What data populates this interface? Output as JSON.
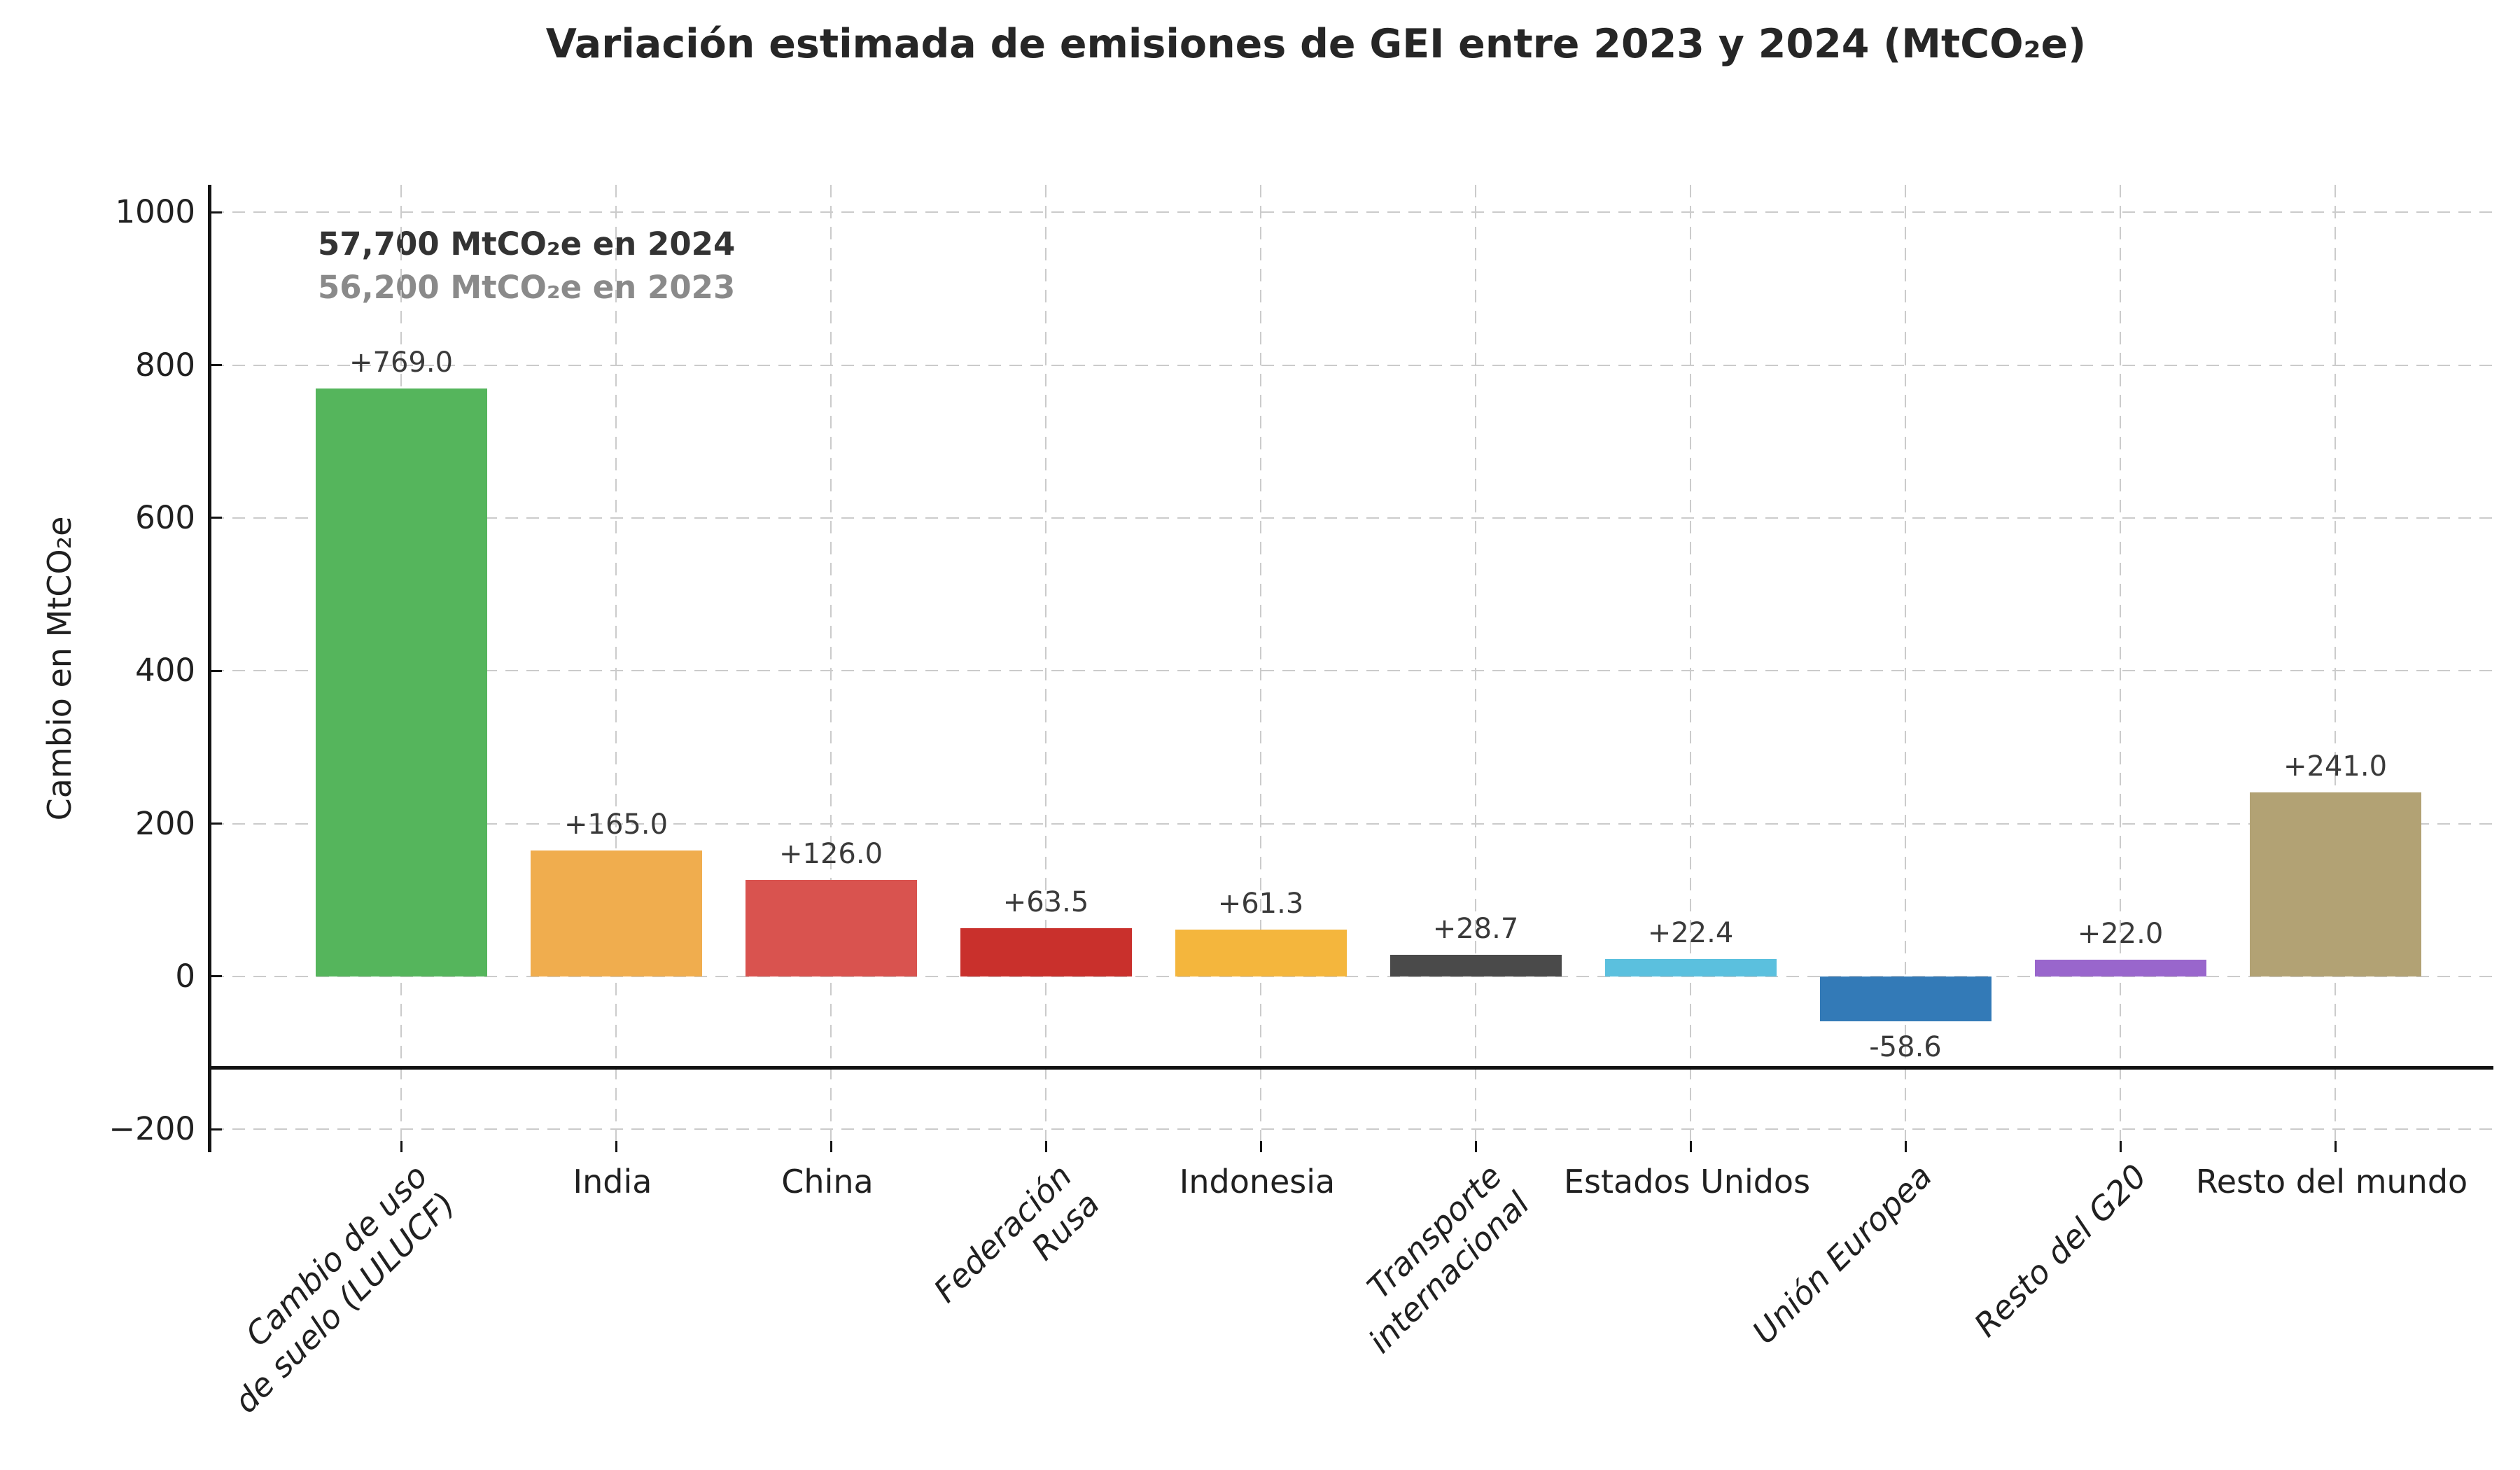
{
  "title": "Variación estimada de emisiones de GEI entre 2023 y 2024 (MtCO₂e)",
  "annotation": {
    "line1": "57,700 MtCO₂e en 2024",
    "line2": "56,200 MtCO₂e en 2023",
    "line1_color": "#333333",
    "line2_color": "#8a8a8a"
  },
  "chart_data": {
    "type": "bar",
    "title": "Variación estimada de emisiones de GEI entre 2023 y 2024 (MtCO₂e)",
    "xlabel": "",
    "ylabel": "Cambio en MtCO₂e",
    "categories": [
      "Cambio de uso de suelo (LULUCF)",
      "India",
      "China",
      "Federación Rusa",
      "Indonesia",
      "Transporte internacional",
      "Estados Unidos",
      "Unión Europea",
      "Resto del G20",
      "Resto del mundo"
    ],
    "category_display_lines": [
      [
        "Cambio de uso",
        "de suelo (LULUCF)"
      ],
      [
        "India"
      ],
      [
        "China"
      ],
      [
        "Federación",
        "Rusa"
      ],
      [
        "Indonesia"
      ],
      [
        "Transporte",
        "internacional"
      ],
      [
        "Estados Unidos"
      ],
      [
        "Unión Europea"
      ],
      [
        "Resto del G20"
      ],
      [
        "Resto del mundo"
      ]
    ],
    "category_rotated": [
      true,
      false,
      false,
      true,
      false,
      true,
      false,
      true,
      true,
      false
    ],
    "values": [
      769.0,
      165.0,
      126.0,
      63.5,
      61.3,
      28.7,
      22.4,
      -58.6,
      22.0,
      241.0
    ],
    "value_labels": [
      "+769.0",
      "+165.0",
      "+126.0",
      "+63.5",
      "+61.3",
      "+28.7",
      "+22.4",
      "-58.6",
      "+22.0",
      "+241.0"
    ],
    "bar_colors": [
      "#55b55c",
      "#f0ad4e",
      "#d9534f",
      "#c9302c",
      "#f4b63d",
      "#4a4a4a",
      "#5bc0de",
      "#337ab7",
      "#9966cc",
      "#b2a274"
    ],
    "yticks": [
      1000,
      800,
      600,
      400,
      200,
      0,
      -200
    ],
    "ytick_labels": [
      "1000",
      "800",
      "600",
      "400",
      "200",
      "0",
      "−200"
    ],
    "ylim": [
      -230,
      1036
    ],
    "reference_line_y": -120,
    "grid": "dashed gray, horizontal at yticks and vertical at each category",
    "legend": "none",
    "value_label_color": "#3a3a3a",
    "gridline_color": "#cbcbcb",
    "axis_color": "#141414"
  }
}
